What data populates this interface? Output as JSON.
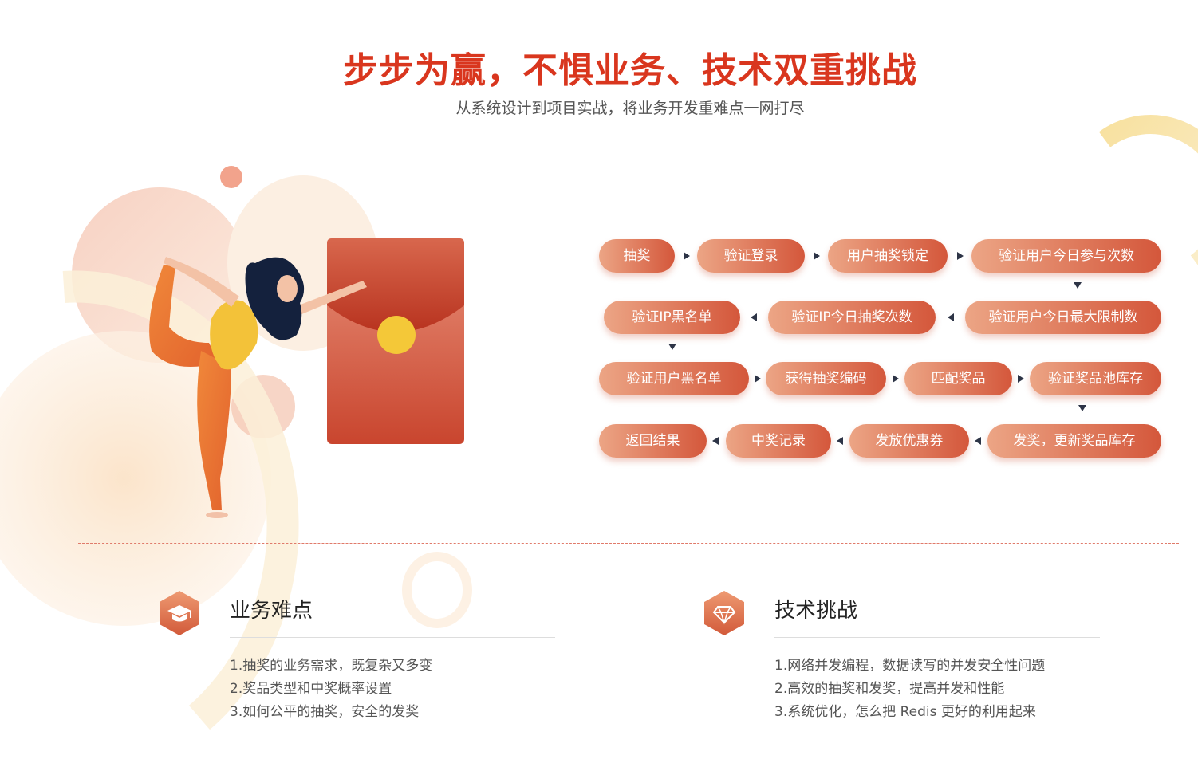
{
  "header": {
    "title": "步步为赢，不惧业务、技术双重挑战",
    "subtitle": "从系统设计到项目实战，将业务开发重难点一网打尽"
  },
  "flow": {
    "row1": [
      "抽奖",
      "验证登录",
      "用户抽奖锁定",
      "验证用户今日参与次数"
    ],
    "row2": [
      "验证IP黑名单",
      "验证IP今日抽奖次数",
      "验证用户今日最大限制数"
    ],
    "row3": [
      "验证用户黑名单",
      "获得抽奖编码",
      "匹配奖品",
      "验证奖品池库存"
    ],
    "row4": [
      "返回结果",
      "中奖记录",
      "发放优惠券",
      "发奖，更新奖品库存"
    ]
  },
  "business": {
    "icon": "graduation-cap-icon",
    "title": "业务难点",
    "items": [
      "1.抽奖的业务需求，既复杂又多变",
      "2.奖品类型和中奖概率设置",
      "3.如何公平的抽奖，安全的发奖"
    ]
  },
  "tech": {
    "icon": "diamond-icon",
    "title": "技术挑战",
    "items": [
      "1.网络并发编程，数据读写的并发安全性问题",
      "2.高效的抽奖和发奖，提高并发和性能",
      "3.系统优化，怎么把 Redis 更好的利用起来"
    ]
  },
  "colors": {
    "title_red": "#d9361e",
    "pill_light": "#eca585",
    "pill_dark": "#d4573b",
    "arrow": "#2d3446"
  }
}
